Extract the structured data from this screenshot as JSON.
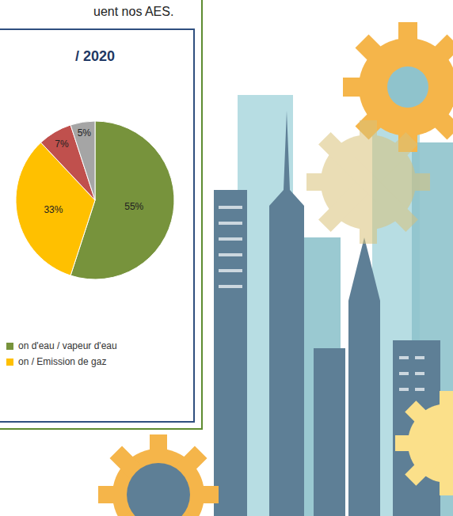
{
  "header": "uent nos AES.",
  "chart_data": {
    "type": "pie",
    "title": "/ 2020",
    "categories": [
      "on d'eau / vapeur d'eau",
      "on / Emission de gaz",
      null,
      null
    ],
    "values": [
      55,
      33,
      7,
      5
    ],
    "value_labels": [
      "55%",
      "33%",
      "7%",
      "5%"
    ],
    "colors": [
      "#77933c",
      "#ffc000",
      "#c0504d",
      "#a5a5a5"
    ],
    "data_labels": true
  }
}
